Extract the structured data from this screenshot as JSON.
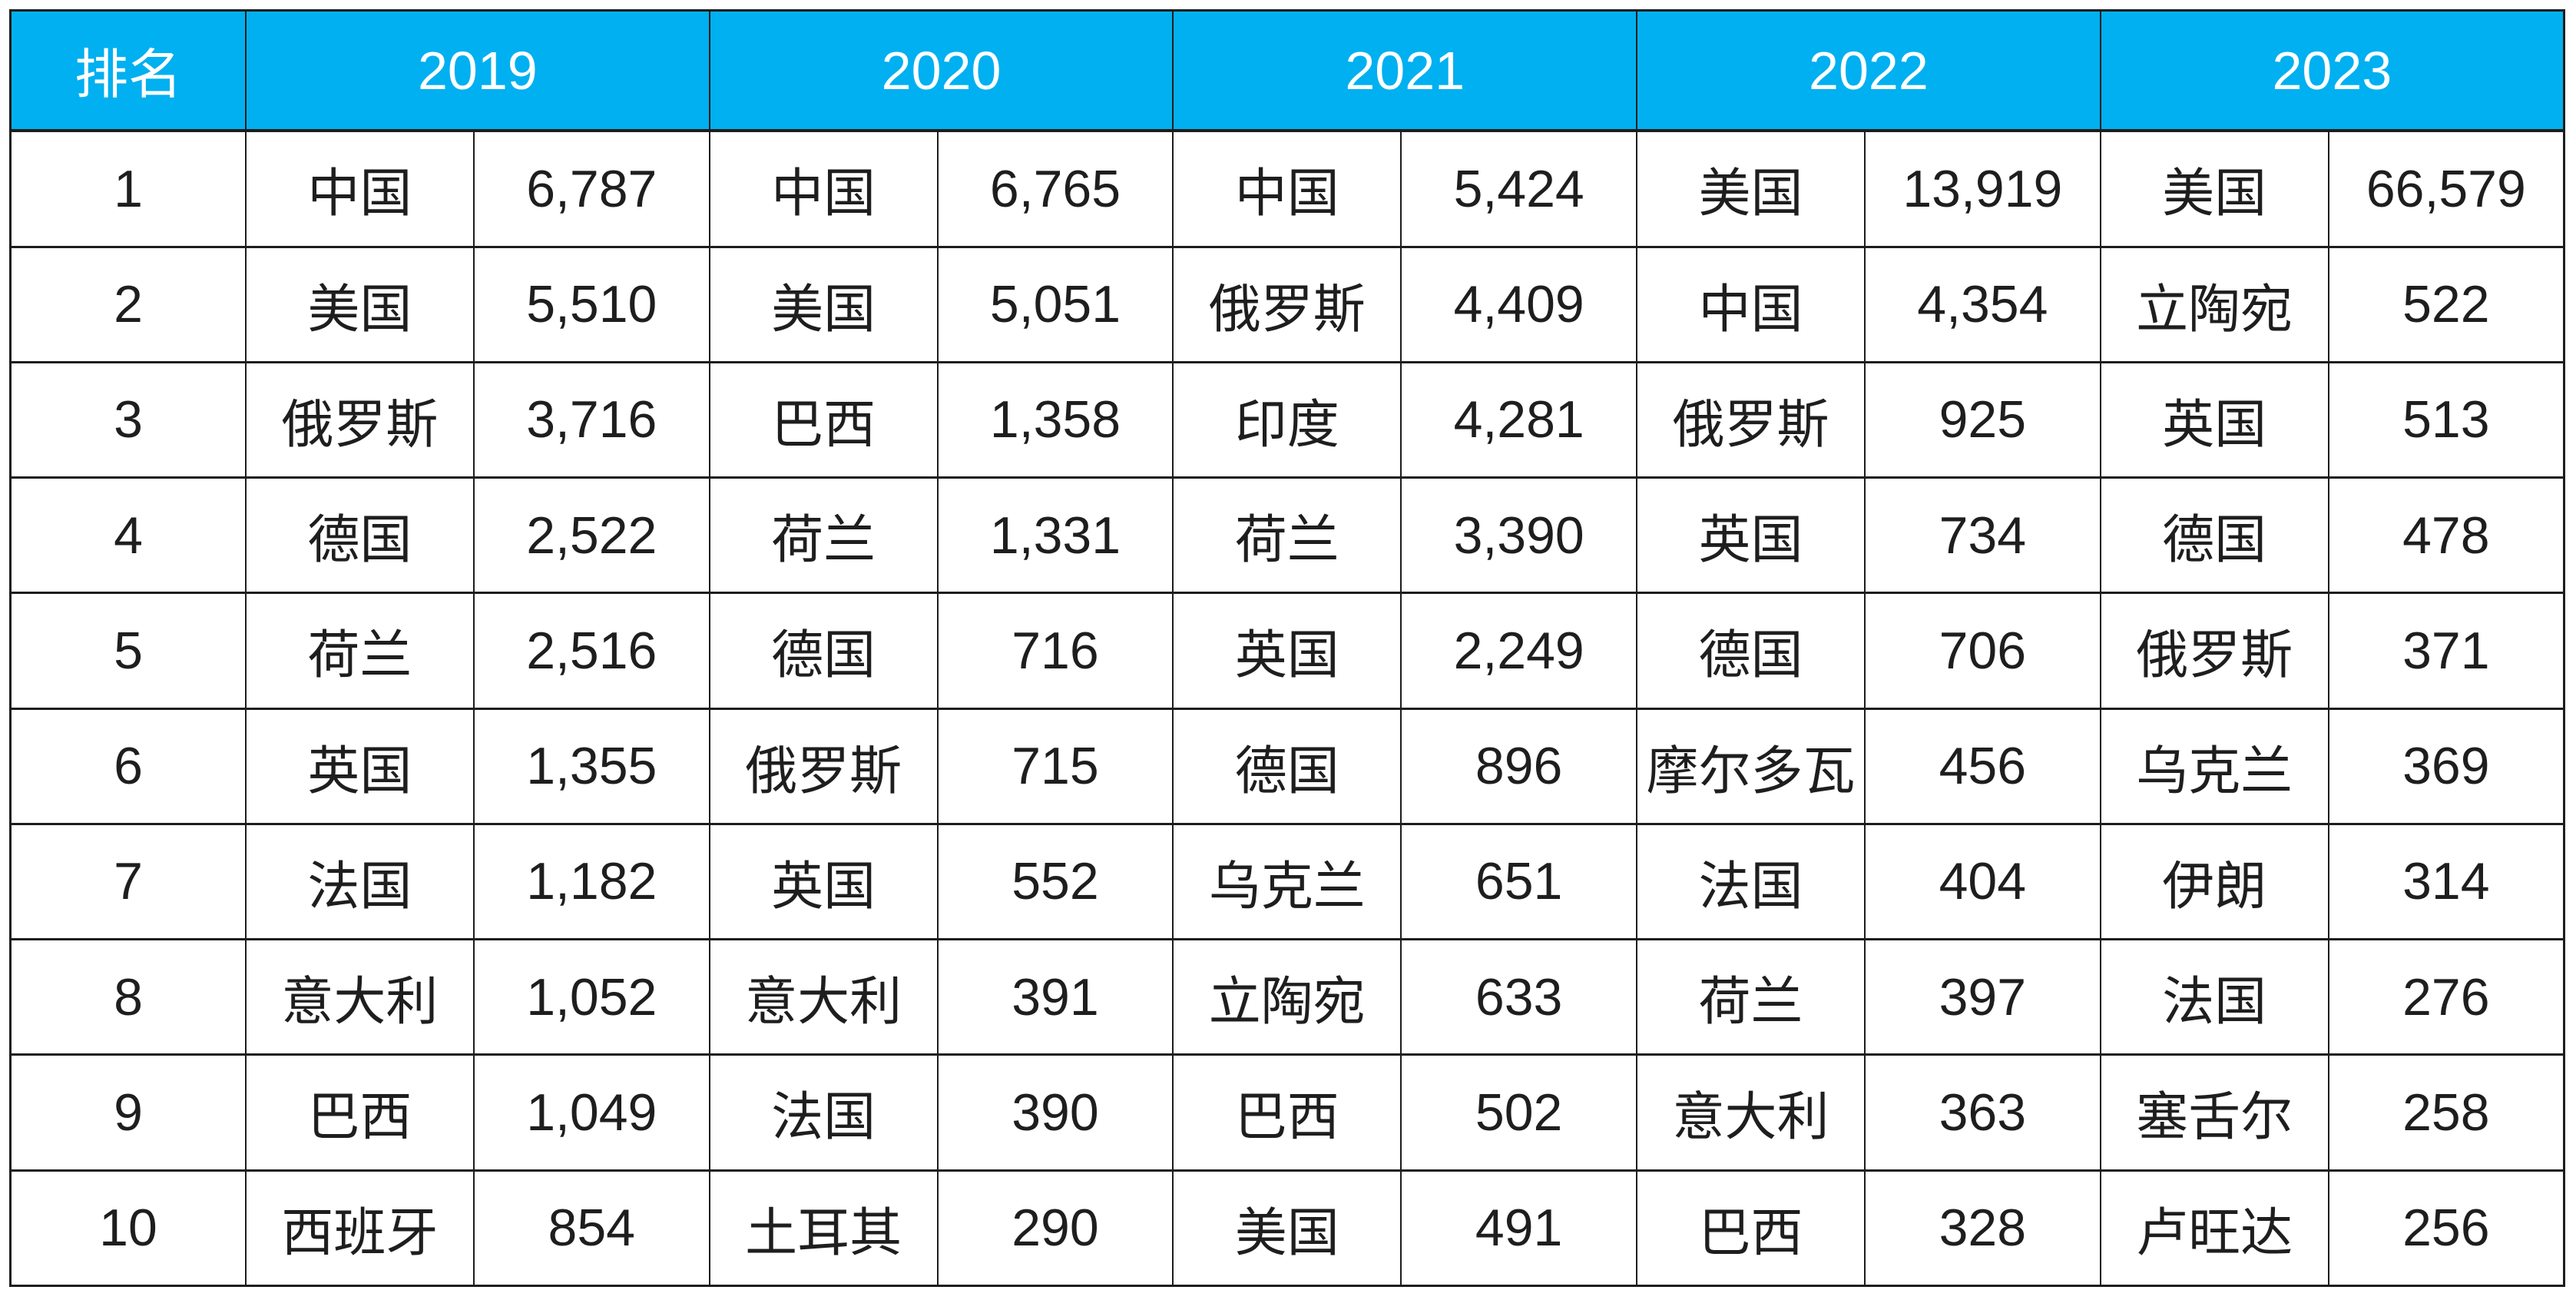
{
  "chart_data": {
    "type": "table",
    "title": "",
    "rank_header": "排名",
    "years": [
      "2019",
      "2020",
      "2021",
      "2022",
      "2023"
    ],
    "rows": [
      {
        "rank": "1",
        "cells": [
          [
            "中国",
            "6,787"
          ],
          [
            "中国",
            "6,765"
          ],
          [
            "中国",
            "5,424"
          ],
          [
            "美国",
            "13,919"
          ],
          [
            "美国",
            "66,579"
          ]
        ]
      },
      {
        "rank": "2",
        "cells": [
          [
            "美国",
            "5,510"
          ],
          [
            "美国",
            "5,051"
          ],
          [
            "俄罗斯",
            "4,409"
          ],
          [
            "中国",
            "4,354"
          ],
          [
            "立陶宛",
            "522"
          ]
        ]
      },
      {
        "rank": "3",
        "cells": [
          [
            "俄罗斯",
            "3,716"
          ],
          [
            "巴西",
            "1,358"
          ],
          [
            "印度",
            "4,281"
          ],
          [
            "俄罗斯",
            "925"
          ],
          [
            "英国",
            "513"
          ]
        ]
      },
      {
        "rank": "4",
        "cells": [
          [
            "德国",
            "2,522"
          ],
          [
            "荷兰",
            "1,331"
          ],
          [
            "荷兰",
            "3,390"
          ],
          [
            "英国",
            "734"
          ],
          [
            "德国",
            "478"
          ]
        ]
      },
      {
        "rank": "5",
        "cells": [
          [
            "荷兰",
            "2,516"
          ],
          [
            "德国",
            "716"
          ],
          [
            "英国",
            "2,249"
          ],
          [
            "德国",
            "706"
          ],
          [
            "俄罗斯",
            "371"
          ]
        ]
      },
      {
        "rank": "6",
        "cells": [
          [
            "英国",
            "1,355"
          ],
          [
            "俄罗斯",
            "715"
          ],
          [
            "德国",
            "896"
          ],
          [
            "摩尔多瓦",
            "456"
          ],
          [
            "乌克兰",
            "369"
          ]
        ]
      },
      {
        "rank": "7",
        "cells": [
          [
            "法国",
            "1,182"
          ],
          [
            "英国",
            "552"
          ],
          [
            "乌克兰",
            "651"
          ],
          [
            "法国",
            "404"
          ],
          [
            "伊朗",
            "314"
          ]
        ]
      },
      {
        "rank": "8",
        "cells": [
          [
            "意大利",
            "1,052"
          ],
          [
            "意大利",
            "391"
          ],
          [
            "立陶宛",
            "633"
          ],
          [
            "荷兰",
            "397"
          ],
          [
            "法国",
            "276"
          ]
        ]
      },
      {
        "rank": "9",
        "cells": [
          [
            "巴西",
            "1,049"
          ],
          [
            "法国",
            "390"
          ],
          [
            "巴西",
            "502"
          ],
          [
            "意大利",
            "363"
          ],
          [
            "塞舌尔",
            "258"
          ]
        ]
      },
      {
        "rank": "10",
        "cells": [
          [
            "西班牙",
            "854"
          ],
          [
            "土耳其",
            "290"
          ],
          [
            "美国",
            "491"
          ],
          [
            "巴西",
            "328"
          ],
          [
            "卢旺达",
            "256"
          ]
        ]
      }
    ],
    "colors": {
      "header_bg": "#00B0F0",
      "header_text": "#FFFFFF",
      "border": "#1D1D1B",
      "cell_text": "#1E1E1E",
      "background": "#FFFFFF"
    }
  }
}
